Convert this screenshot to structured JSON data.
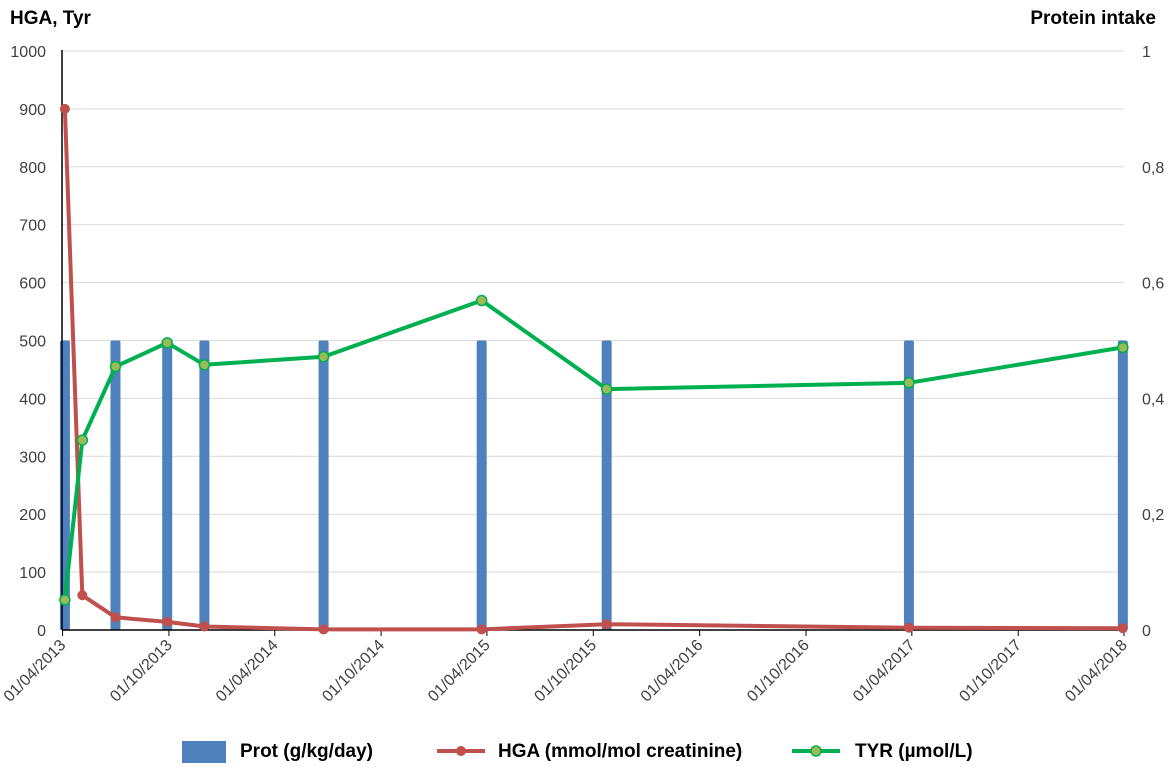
{
  "chart_data": {
    "type": "bar",
    "left_axis_title": "HGA, Tyr",
    "right_axis_title": "Protein intake",
    "left_ticks": [
      "0",
      "100",
      "200",
      "300",
      "400",
      "500",
      "600",
      "700",
      "800",
      "900",
      "1000"
    ],
    "right_ticks": [
      "0",
      "0,2",
      "0,4",
      "0,6",
      "0,8",
      "1"
    ],
    "ylim_left": [
      0,
      1000
    ],
    "ylim_right": [
      0,
      1
    ],
    "x_ticks": [
      "01/04/2013",
      "01/10/2013",
      "01/04/2014",
      "01/10/2014",
      "01/04/2015",
      "01/10/2015",
      "01/04/2016",
      "01/10/2016",
      "01/04/2017",
      "01/10/2017",
      "01/04/2018"
    ],
    "xlim": [
      "2013-03-31",
      "2018-04-01"
    ],
    "grid": "horizontal",
    "legend_position": "bottom",
    "series": [
      {
        "name": "Prot (g/kg/day)",
        "type": "bar",
        "axis": "right",
        "color": "#4f81bd",
        "x": [
          "2013-04-05",
          "2013-07-01",
          "2013-09-28",
          "2013-12-01",
          "2014-06-24",
          "2015-03-23",
          "2015-10-24",
          "2017-03-27",
          "2018-03-30"
        ],
        "values": [
          0.5,
          0.5,
          0.5,
          0.5,
          0.5,
          0.5,
          0.5,
          0.5,
          0.5
        ]
      },
      {
        "name": "HGA (mmol/mol creatinine)",
        "type": "line",
        "axis": "left",
        "color": "#c0504d",
        "x": [
          "2013-04-05",
          "2013-05-05",
          "2013-07-01",
          "2013-09-28",
          "2013-12-01",
          "2014-06-24",
          "2015-03-23",
          "2015-10-24",
          "2017-03-27",
          "2018-03-30"
        ],
        "values": [
          900,
          60,
          22,
          14,
          6,
          1,
          1,
          10,
          4,
          3
        ]
      },
      {
        "name": "TYR (µmol/L)",
        "type": "line",
        "axis": "left",
        "color": "#00b050",
        "marker_fill": "#9bbb59",
        "x": [
          "2013-04-05",
          "2013-05-05",
          "2013-07-01",
          "2013-09-28",
          "2013-12-01",
          "2014-06-24",
          "2015-03-23",
          "2015-10-24",
          "2017-03-27",
          "2018-03-30"
        ],
        "values": [
          52,
          328,
          455,
          496,
          458,
          472,
          569,
          416,
          427,
          488
        ]
      }
    ]
  }
}
